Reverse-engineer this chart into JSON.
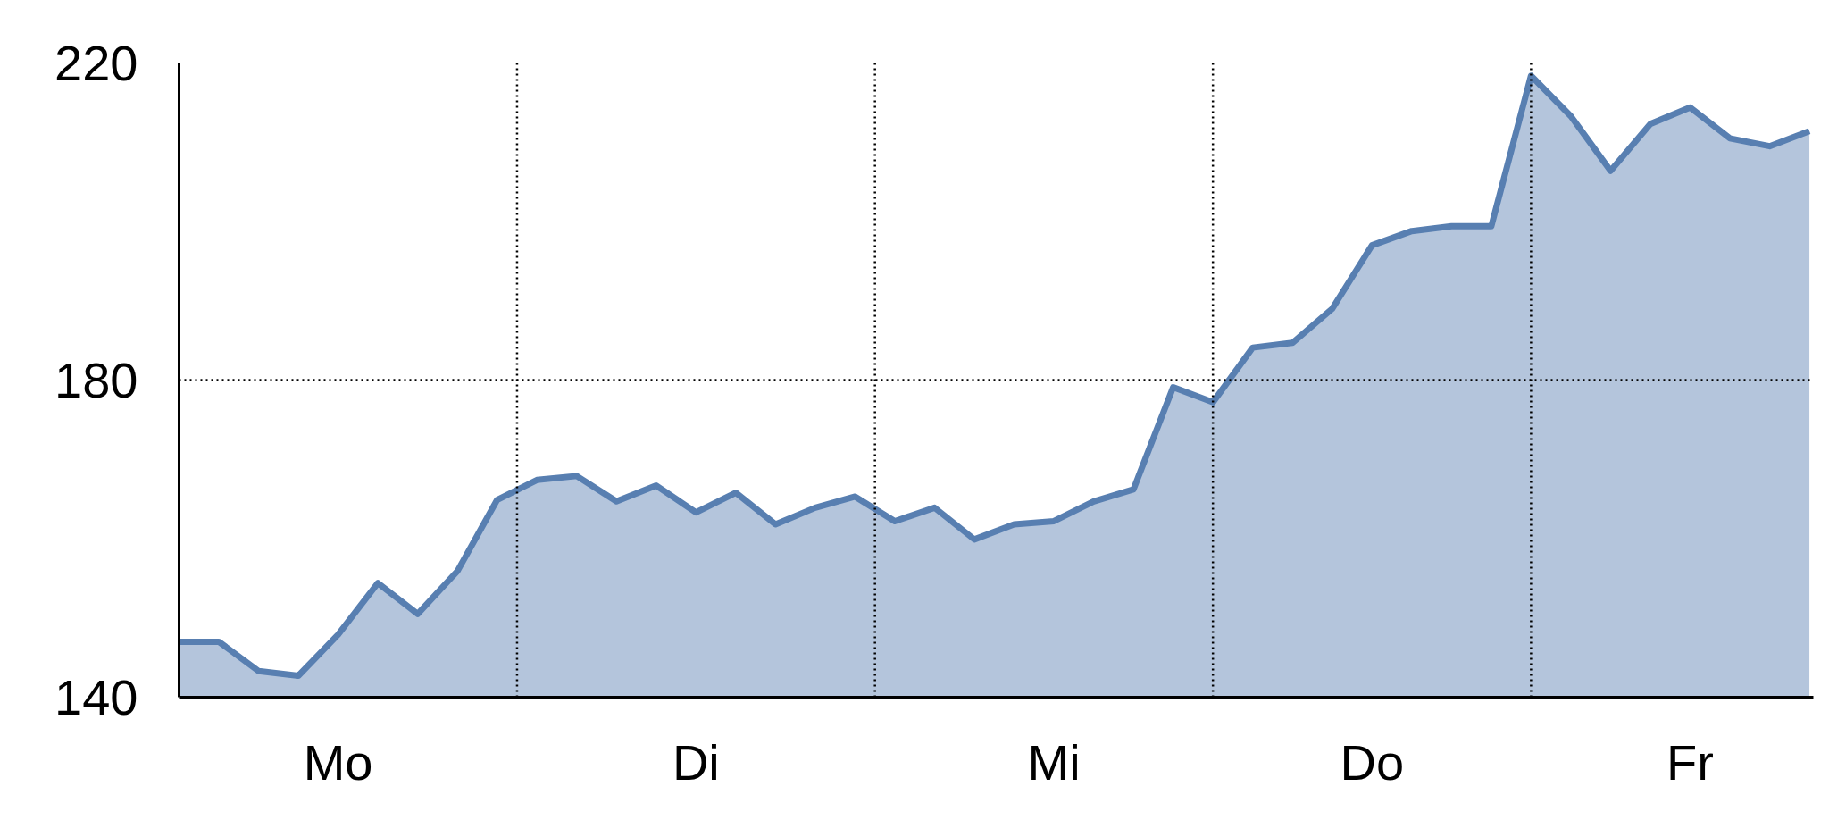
{
  "chart_data": {
    "type": "area",
    "categories": [
      null,
      null,
      null,
      null,
      "Mo",
      null,
      null,
      null,
      null,
      null,
      null,
      null,
      null,
      "Di",
      null,
      null,
      null,
      null,
      null,
      null,
      null,
      null,
      "Mi",
      null,
      null,
      null,
      null,
      null,
      null,
      null,
      "Do",
      null,
      null,
      null,
      null,
      null,
      null,
      null,
      "Fr",
      null,
      null,
      null
    ],
    "series": [
      {
        "color": "#587fb1",
        "values": [
          147,
          147,
          143.3,
          142.7,
          147.9,
          154.4,
          150.5,
          155.9,
          164.9,
          167.4,
          167.9,
          164.7,
          166.7,
          163.3,
          165.8,
          161.8,
          163.9,
          165.3,
          162.2,
          163.9,
          159.9,
          161.8,
          162.2,
          164.7,
          166.2,
          179.1,
          177.2,
          184.1,
          184.7,
          189,
          197,
          198.8,
          199.4,
          199.4,
          218.4,
          213.3,
          206.4,
          212.3,
          214.4,
          210.5,
          209.5,
          211.4
        ]
      }
    ],
    "ylim": [
      140,
      220
    ],
    "yticks": [
      140,
      180,
      220
    ],
    "ref_lines": [
      {
        "axis": "y",
        "value": 180,
        "line_style": "dotted"
      }
    ],
    "grid": "x",
    "marker": "none"
  }
}
